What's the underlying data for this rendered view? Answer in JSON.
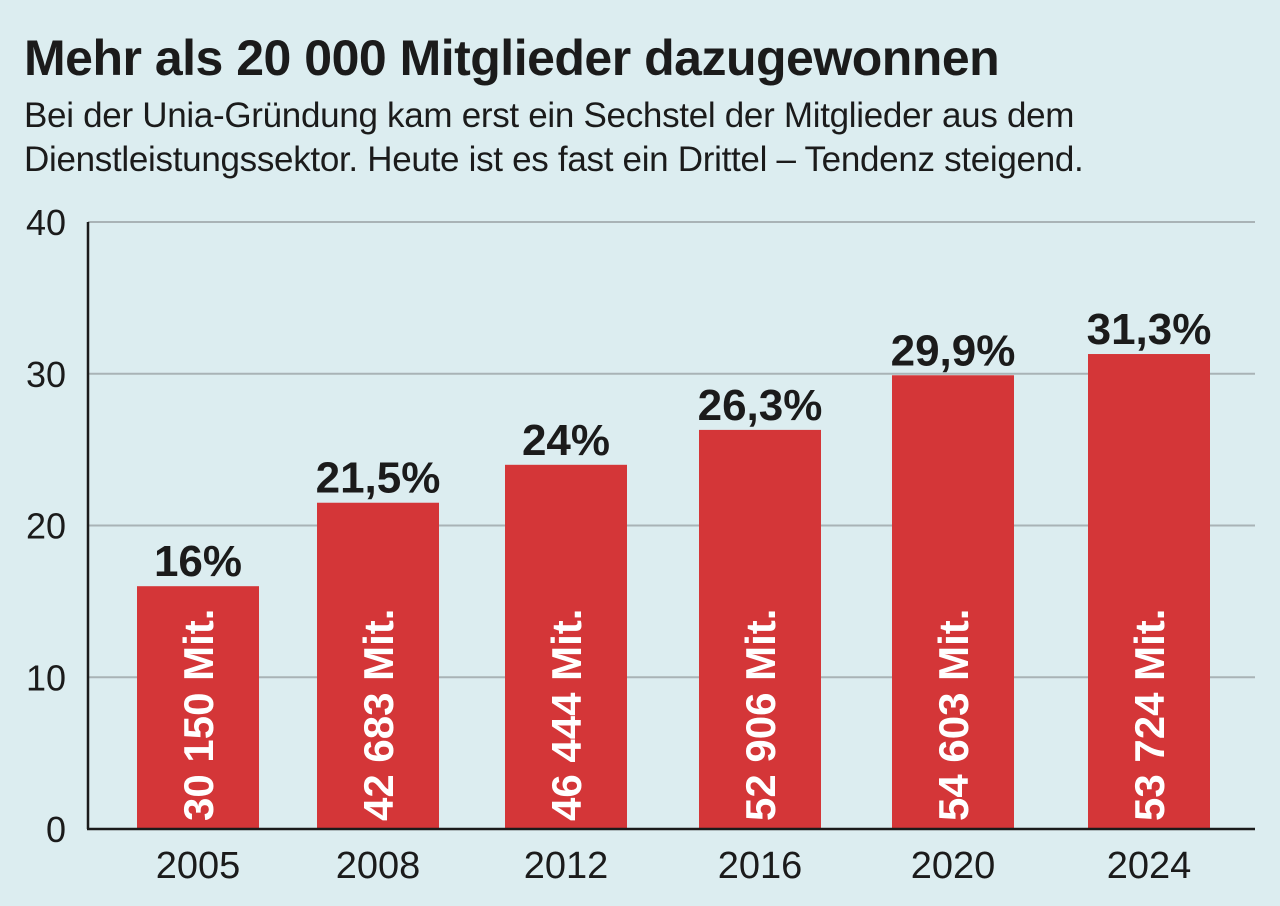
{
  "chart_data": {
    "type": "bar",
    "title": "Mehr als 20 000 Mitglieder dazugewonnen",
    "subtitle": "Bei der Unia-Gründung kam erst ein Sechstel der Mitglieder aus dem Dienstleistungssektor. Heute ist es fast ein Drittel – Tendenz steigend.",
    "categories": [
      "2005",
      "2008",
      "2012",
      "2016",
      "2020",
      "2024"
    ],
    "values": [
      16,
      21.5,
      24,
      26.3,
      29.9,
      31.3
    ],
    "value_labels": [
      "16%",
      "21,5%",
      "24%",
      "26,3%",
      "29,9%",
      "31,3%"
    ],
    "bar_labels": [
      "30 150 Mit.",
      "42 683 Mit.",
      "46 444 Mit.",
      "52 906 Mit.",
      "54 603 Mit.",
      "53 724 Mit."
    ],
    "yticks": [
      0,
      10,
      20,
      30,
      40
    ],
    "ylim": [
      0,
      40
    ],
    "xlabel": "",
    "ylabel": "",
    "grid": true,
    "legend": "none",
    "colors": {
      "bar": "#d43638",
      "background": "#dcedf0",
      "grid": "#a9b3b6",
      "axis": "#1b1b1b",
      "text": "#1b1b1b",
      "bar_text": "#ffffff"
    }
  }
}
